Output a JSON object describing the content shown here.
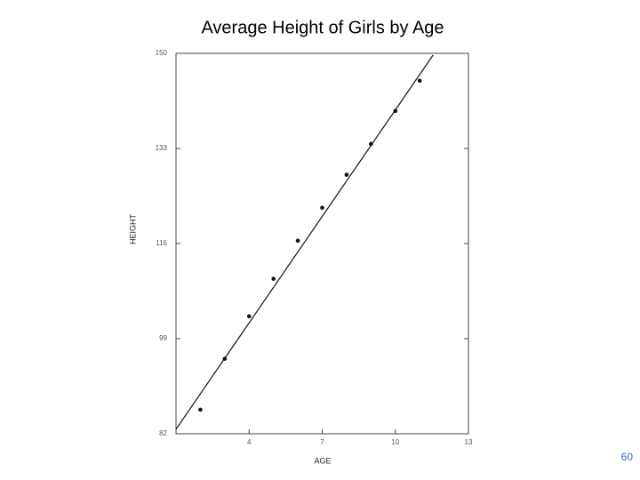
{
  "chart_data": {
    "type": "scatter",
    "title": "Average Height of Girls by Age",
    "xlabel": "AGE",
    "ylabel": "HEIGHT",
    "x": [
      2,
      3,
      4,
      5,
      6,
      7,
      8,
      9,
      10,
      11
    ],
    "values": [
      86.3,
      95.4,
      103.0,
      109.7,
      116.5,
      122.4,
      128.3,
      133.8,
      139.7,
      145.1
    ],
    "color": "#111111",
    "fit_line": {
      "x": [
        1,
        11.55
      ],
      "y": [
        82.8,
        149.7
      ],
      "color": "#111111"
    },
    "xlim": [
      1,
      13
    ],
    "xticks": [
      4,
      7,
      10,
      13
    ],
    "ylim": [
      82,
      150
    ],
    "yticks": [
      82,
      99,
      116,
      133,
      150
    ]
  },
  "page_number": "60"
}
